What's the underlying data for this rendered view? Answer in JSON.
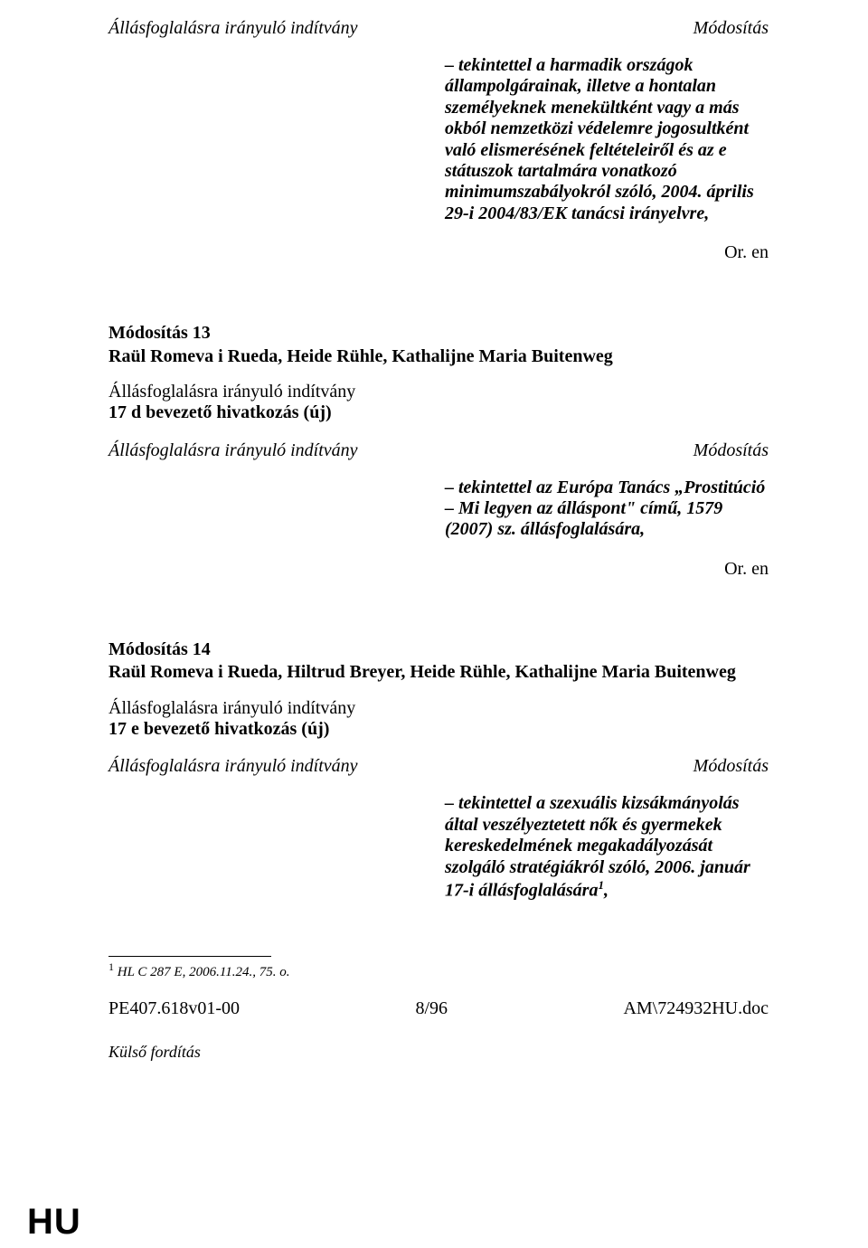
{
  "top": {
    "left_heading": "Állásfoglalásra irányuló indítvány",
    "right_heading": "Módosítás",
    "amendment_text": "– tekintettel a harmadik országok állampolgárainak, illetve a hontalan személyeknek menekültként vagy a más okból nemzetközi védelemre jogosultként való elismerésének feltételeiről és az e státuszok tartalmára vonatkozó minimumszabályokról szóló, 2004. április 29-i 2004/83/EK tanácsi irányelvre,",
    "or_en": "Or. en"
  },
  "block13": {
    "title": "Módosítás 13",
    "authors": "Raül Romeva i Rueda, Heide Rühle, Kathalijne Maria Buitenweg",
    "sub_line1": "Állásfoglalásra irányuló indítvány",
    "sub_line2": "17 d bevezető hivatkozás (új)",
    "left_heading": "Állásfoglalásra irányuló indítvány",
    "right_heading": "Módosítás",
    "amendment_text": "– tekintettel az Európa Tanács „Prostitúció – Mi legyen az álláspont\" című, 1579 (2007) sz. állásfoglalására,",
    "or_en": "Or. en"
  },
  "block14": {
    "title": "Módosítás 14",
    "authors": "Raül Romeva i Rueda, Hiltrud Breyer, Heide Rühle, Kathalijne Maria Buitenweg",
    "sub_line1": "Állásfoglalásra irányuló indítvány",
    "sub_line2": "17 e bevezető hivatkozás (új)",
    "left_heading": "Állásfoglalásra irányuló indítvány",
    "right_heading": "Módosítás",
    "amendment_text_part1": "– tekintettel a szexuális kizsákmányolás által veszélyeztetett nők és gyermekek kereskedelmének megakadályozását szolgáló stratégiákról szóló, 2006. január 17-i állásfoglalására",
    "footmark": "1",
    "amendment_text_part2": ","
  },
  "footnote": {
    "mark": "1",
    "text": " HL C 287 E, 2006.11.24., 75. o."
  },
  "footer": {
    "left": "PE407.618v01-00",
    "center": "8/96",
    "right": "AM\\724932HU.doc"
  },
  "kulso": "Külső fordítás",
  "hu": "HU"
}
